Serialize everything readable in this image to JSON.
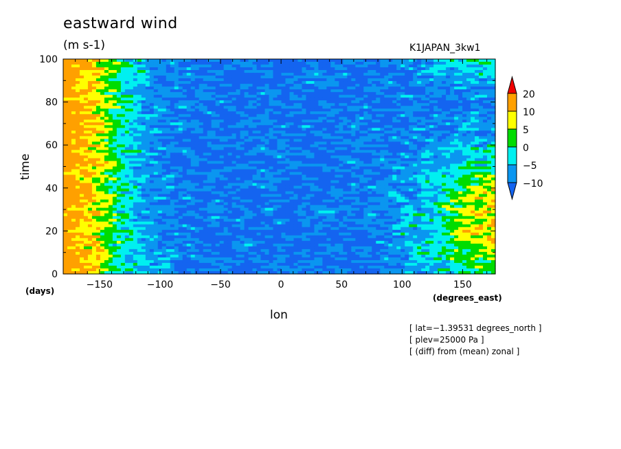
{
  "chart_data": {
    "type": "heatmap",
    "title": "eastward wind",
    "units": "(m s-1)",
    "model": "K1JAPAN_3kw1",
    "xlabel": "lon",
    "ylabel": "time",
    "x_units": "(degrees_east)",
    "y_units": "(days)",
    "xlim": [
      -180,
      177
    ],
    "ylim": [
      0,
      100
    ],
    "x_ticks": [
      -150,
      -100,
      -50,
      0,
      50,
      100,
      150
    ],
    "y_ticks": [
      0,
      20,
      40,
      60,
      80,
      100
    ],
    "colorbar": {
      "levels": [
        -10,
        -5,
        0,
        5,
        10,
        20
      ],
      "labels": [
        "20",
        "10",
        "5",
        "0",
        "−5",
        "−10"
      ],
      "colors": [
        "#1464f0",
        "#0a96f0",
        "#00f0f0",
        "#00dc00",
        "#ffff00",
        "#ffa000",
        "#f00000"
      ]
    },
    "info_lines": [
      "[ lat=−1.39531 degrees_north ]",
      "[ plev=25000 Pa ]",
      "[ (diff) from (mean) zonal ]"
    ],
    "tick_text": {
      "x": [
        "−150",
        "−100",
        "−50",
        "0",
        "50",
        "100",
        "150"
      ],
      "y": [
        "0",
        "20",
        "40",
        "60",
        "80",
        "100"
      ]
    }
  }
}
